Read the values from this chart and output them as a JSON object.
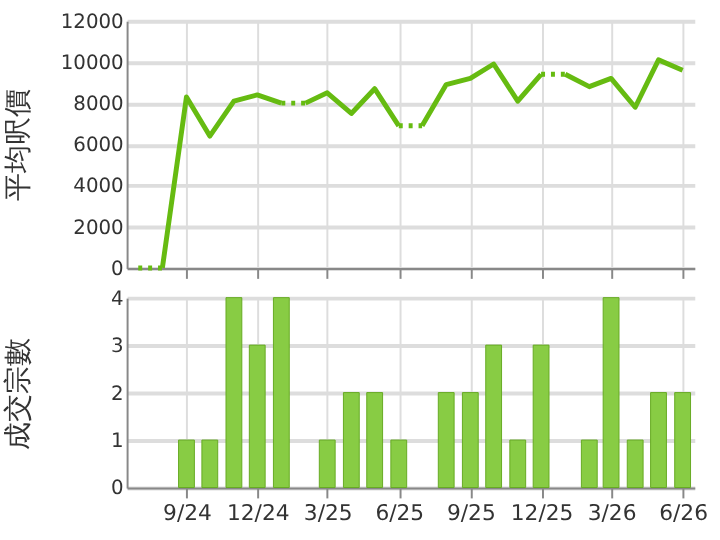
{
  "chart_data": [
    {
      "type": "line",
      "ylabel": "平均呎價",
      "ylim": [
        0,
        12000
      ],
      "yticks": [
        0,
        2000,
        4000,
        6000,
        8000,
        10000,
        12000
      ],
      "xlim": [
        "2024-06-16",
        "2026-06-16"
      ],
      "xticks": [
        {
          "value": "2024-09",
          "label": null
        },
        {
          "value": "2024-12",
          "label": null
        },
        {
          "value": "2025-03",
          "label": null
        },
        {
          "value": "2025-06",
          "label": null
        },
        {
          "value": "2025-09",
          "label": null
        },
        {
          "value": "2025-12",
          "label": null
        },
        {
          "value": "2026-03",
          "label": null
        },
        {
          "value": "2026-06",
          "label": null
        }
      ],
      "tick_labels": "y",
      "grid": true,
      "marker": "none",
      "series": [
        {
          "color": "#66bb11",
          "line_style": "dotted",
          "x": [
            "2024-07",
            "2024-08"
          ],
          "values": [
            0,
            0
          ]
        },
        {
          "color": "#66bb11",
          "line_style": "solid",
          "x": [
            "2024-08",
            "2024-09",
            "2024-10",
            "2024-11",
            "2024-12",
            "2025-01"
          ],
          "values": [
            0,
            8300,
            6400,
            8100,
            8400,
            8000
          ]
        },
        {
          "color": "#66bb11",
          "line_style": "dotted",
          "x": [
            "2025-01",
            "2025-02"
          ],
          "values": [
            8000,
            8000
          ]
        },
        {
          "color": "#66bb11",
          "line_style": "solid",
          "x": [
            "2025-02",
            "2025-03",
            "2025-04",
            "2025-05",
            "2025-06"
          ],
          "values": [
            8000,
            8500,
            7500,
            8700,
            6900
          ]
        },
        {
          "color": "#66bb11",
          "line_style": "dotted",
          "x": [
            "2025-06",
            "2025-07"
          ],
          "values": [
            6900,
            6900
          ]
        },
        {
          "color": "#66bb11",
          "line_style": "solid",
          "x": [
            "2025-07",
            "2025-08",
            "2025-09",
            "2025-10",
            "2025-11",
            "2025-12"
          ],
          "values": [
            6900,
            8900,
            9200,
            9900,
            8100,
            9400
          ]
        },
        {
          "color": "#66bb11",
          "line_style": "dotted",
          "x": [
            "2025-12",
            "2026-01"
          ],
          "values": [
            9400,
            9400
          ]
        },
        {
          "color": "#66bb11",
          "line_style": "solid",
          "x": [
            "2026-01",
            "2026-02",
            "2026-03",
            "2026-04",
            "2026-05",
            "2026-06"
          ],
          "values": [
            9400,
            8800,
            9200,
            7800,
            10100,
            9600
          ]
        }
      ]
    },
    {
      "type": "bar",
      "ylabel": "成交宗數",
      "ylim": [
        0,
        4
      ],
      "yticks": [
        0,
        1,
        2,
        3,
        4
      ],
      "xlim": [
        "2024-06-16",
        "2026-06-16"
      ],
      "xticks": [
        {
          "value": "2024-09",
          "label": "9/24"
        },
        {
          "value": "2024-12",
          "label": "12/24"
        },
        {
          "value": "2025-03",
          "label": "3/25"
        },
        {
          "value": "2025-06",
          "label": "6/25"
        },
        {
          "value": "2025-09",
          "label": "9/25"
        },
        {
          "value": "2025-12",
          "label": "12/25"
        },
        {
          "value": "2026-03",
          "label": "3/26"
        },
        {
          "value": "2026-06",
          "label": "6/26"
        }
      ],
      "grid": true,
      "x": [
        "2024-09",
        "2024-10",
        "2024-11",
        "2024-12",
        "2025-01",
        "2025-03",
        "2025-04",
        "2025-05",
        "2025-06",
        "2025-08",
        "2025-09",
        "2025-10",
        "2025-11",
        "2025-12",
        "2026-02",
        "2026-03",
        "2026-04",
        "2026-05",
        "2026-06"
      ],
      "values": [
        1,
        1,
        4,
        3,
        4,
        1,
        2,
        2,
        1,
        2,
        2,
        3,
        1,
        3,
        1,
        4,
        1,
        2,
        2
      ],
      "color": "#88cc44"
    }
  ]
}
